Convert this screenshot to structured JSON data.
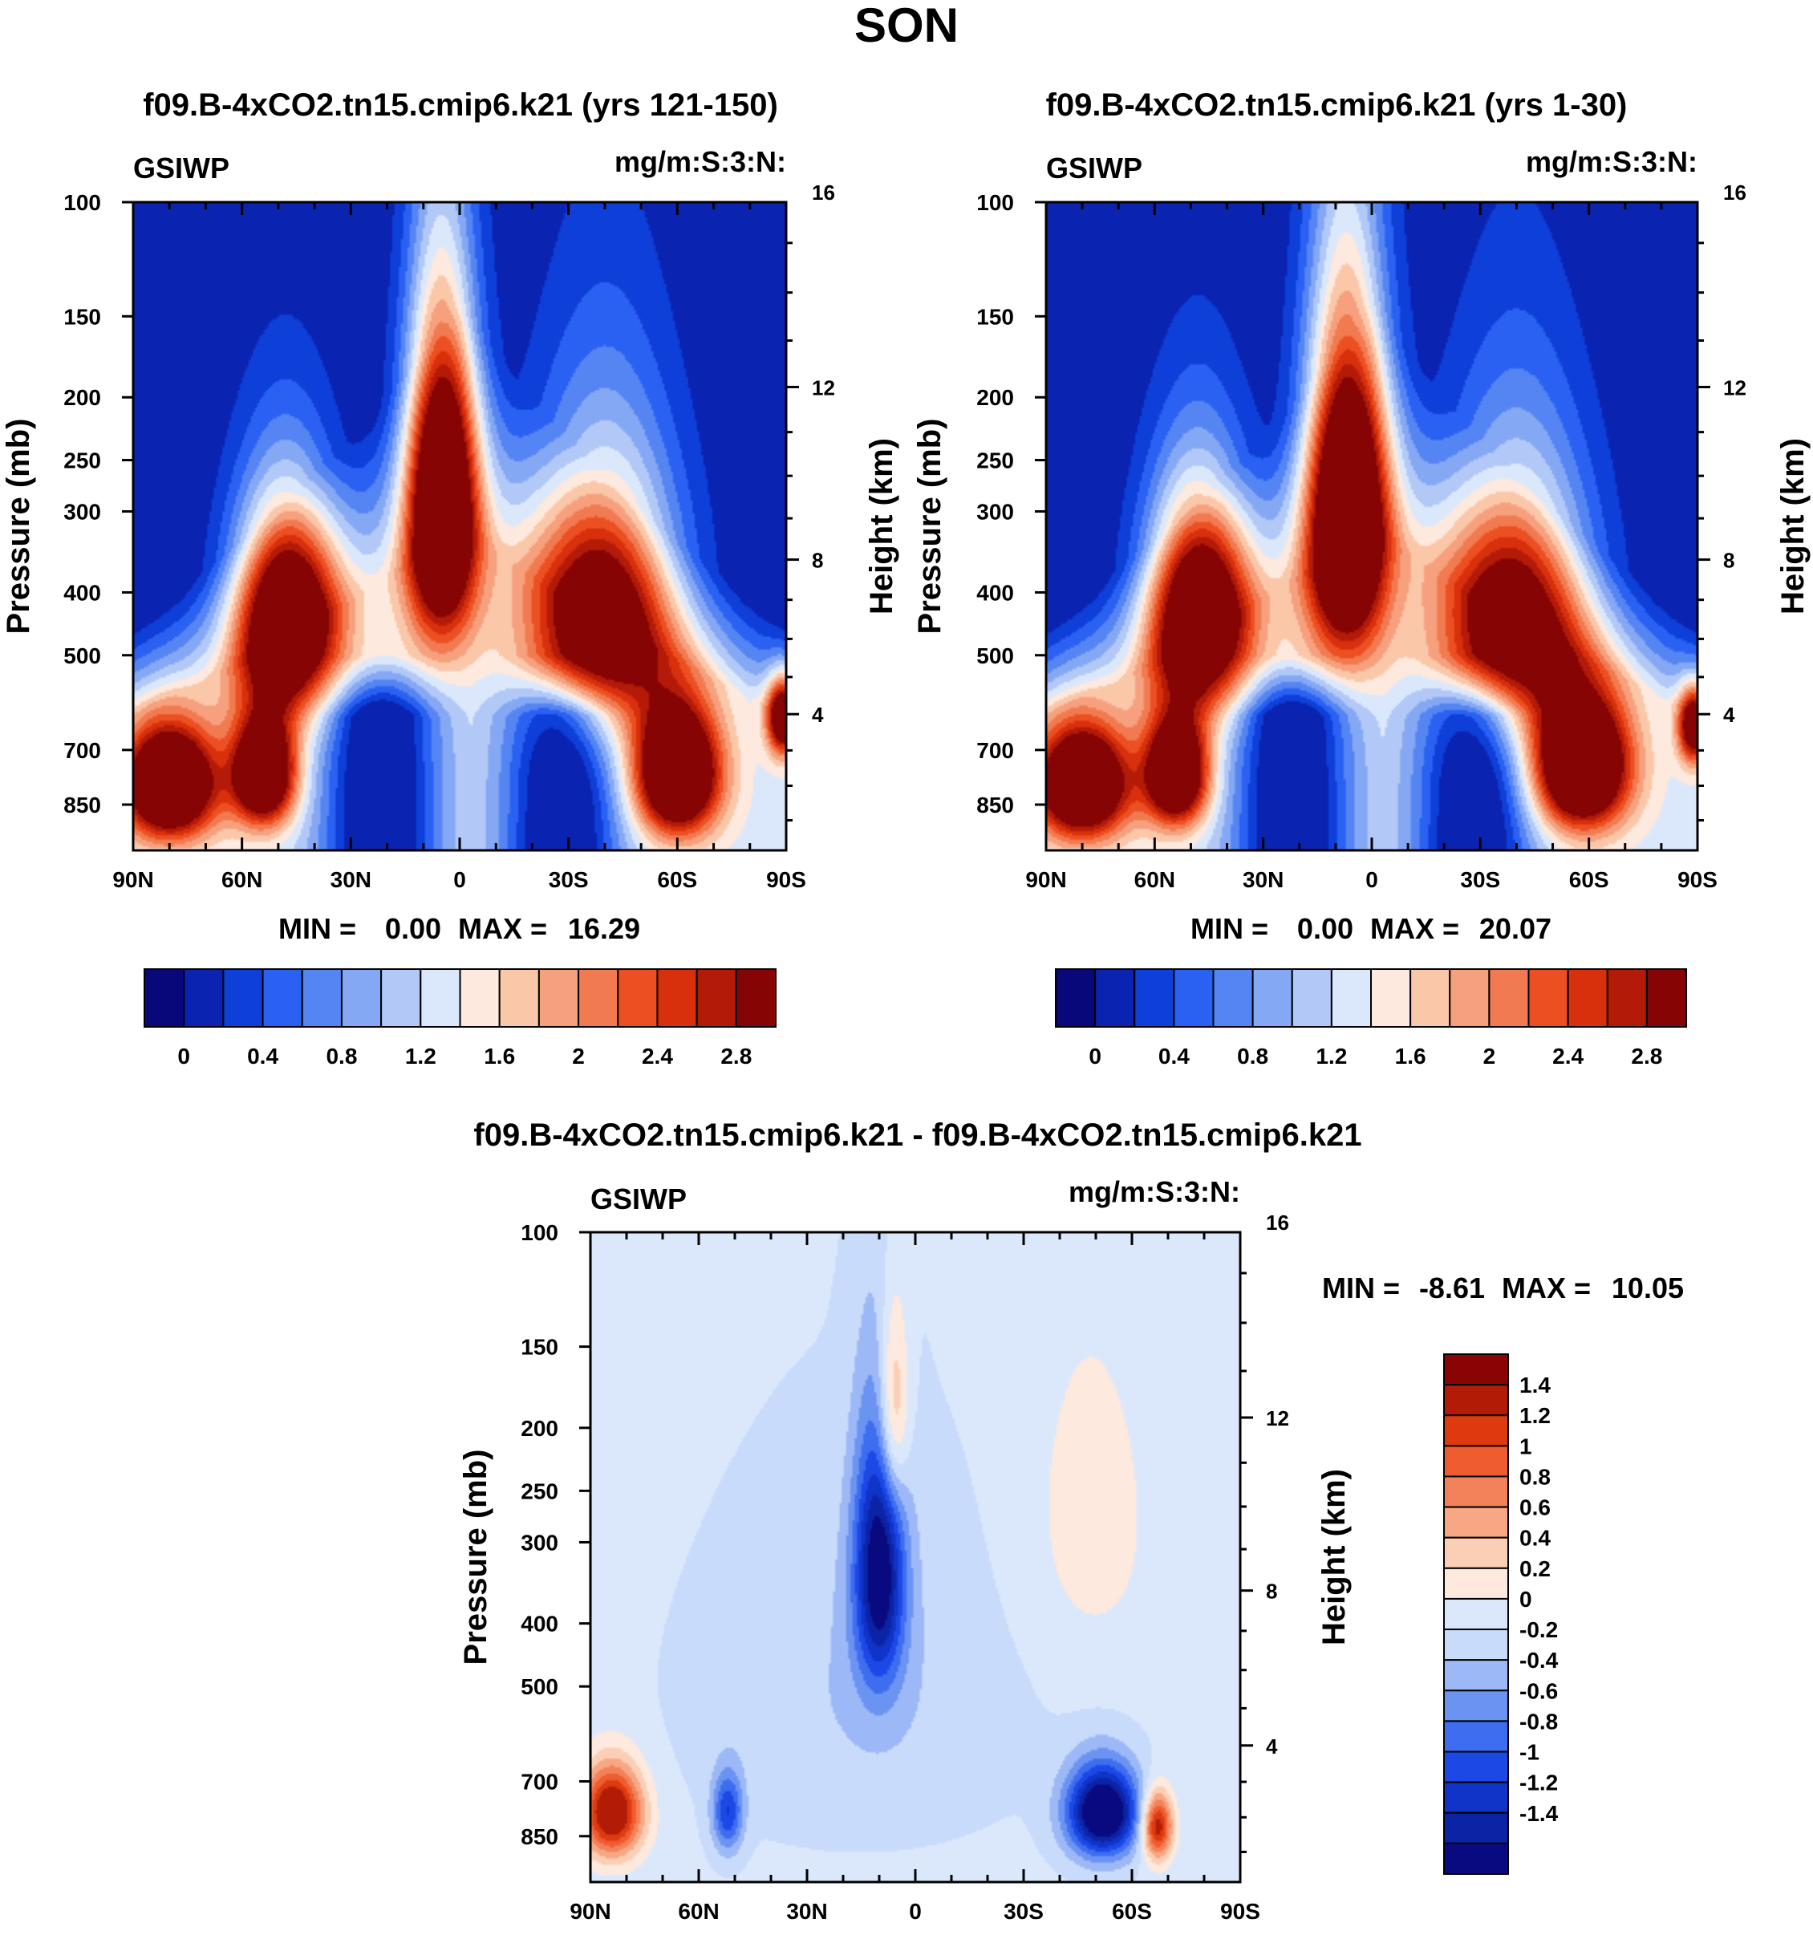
{
  "figure": {
    "season_title": "SON",
    "diff_title": "f09.B-4xCO2.tn15.cmip6.k21 - f09.B-4xCO2.tn15.cmip6.k21"
  },
  "colors": {
    "seq_palette": [
      "#08087a",
      "#0a23b0",
      "#0e3fd8",
      "#2a61f2",
      "#5585f2",
      "#85a8f5",
      "#b2c9f8",
      "#dbe8fc",
      "#fde9dd",
      "#fbc7a9",
      "#f6a07e",
      "#f27a50",
      "#ec4f22",
      "#d82f0d",
      "#b31b08",
      "#870404"
    ],
    "diff_palette": [
      "#0a0a80",
      "#0b24a6",
      "#1033c8",
      "#1c49e6",
      "#3e6df0",
      "#6b93f2",
      "#9cb8f6",
      "#c9dbfa",
      "#dbe8fc",
      "#fde9dd",
      "#fbcfb5",
      "#f7a784",
      "#f3825a",
      "#ee5c2f",
      "#dd3a10",
      "#b21c07",
      "#8a0404"
    ]
  },
  "chart_data": [
    {
      "type": "heatmap",
      "title": "f09.B-4xCO2.tn15.cmip6.k21 (yrs 121-150)",
      "left_label": "GSIWP",
      "right_label": "mg/m:S:3:N:",
      "xlabel": "",
      "ylabel": "Pressure (mb)",
      "y2label": "Height (km)",
      "x_ticks": [
        "90N",
        "60N",
        "30N",
        "0",
        "30S",
        "60S",
        "90S"
      ],
      "x_range": [
        90,
        -90
      ],
      "y_ticks": [
        100,
        150,
        200,
        250,
        300,
        400,
        500,
        700,
        850
      ],
      "y_range": [
        100,
        1000
      ],
      "y2_ticks": [
        16,
        12,
        8,
        4
      ],
      "min_label": "MIN =",
      "min_value": "0.00",
      "max_label": "MAX =",
      "max_value": "16.29",
      "colorbar_labels": [
        "0",
        "0.4",
        "0.8",
        "1.2",
        "1.6",
        "2",
        "2.4",
        "2.8"
      ],
      "colorbar_levels": [
        0,
        0.2,
        0.4,
        0.6,
        0.8,
        1,
        1.2,
        1.4,
        1.6,
        1.8,
        2,
        2.2,
        2.4,
        2.6,
        2.8
      ],
      "features": [
        {
          "lat": 5,
          "p": 280,
          "value": 3.5,
          "sx": 7,
          "sp": 120
        },
        {
          "lat": 48,
          "p": 430,
          "value": 3.1,
          "sx": 10,
          "sp": 120
        },
        {
          "lat": 80,
          "p": 790,
          "value": 3.2,
          "sx": 9,
          "sp": 110
        },
        {
          "lat": 54,
          "p": 760,
          "value": 3.0,
          "sx": 6,
          "sp": 100
        },
        {
          "lat": -40,
          "p": 420,
          "value": 2.5,
          "sx": 14,
          "sp": 150
        },
        {
          "lat": -60,
          "p": 760,
          "value": 3.2,
          "sx": 8,
          "sp": 120
        },
        {
          "lat": -89,
          "p": 620,
          "value": 2.5,
          "sx": 3,
          "sp": 60
        }
      ]
    },
    {
      "type": "heatmap",
      "title": "f09.B-4xCO2.tn15.cmip6.k21 (yrs 1-30)",
      "left_label": "GSIWP",
      "right_label": "mg/m:S:3:N:",
      "xlabel": "",
      "ylabel": "Pressure (mb)",
      "y2label": "Height (km)",
      "x_ticks": [
        "90N",
        "60N",
        "30N",
        "0",
        "30S",
        "60S",
        "90S"
      ],
      "x_range": [
        90,
        -90
      ],
      "y_ticks": [
        100,
        150,
        200,
        250,
        300,
        400,
        500,
        700,
        850
      ],
      "y_range": [
        100,
        1000
      ],
      "y2_ticks": [
        16,
        12,
        8,
        4
      ],
      "min_label": "MIN =",
      "min_value": "0.00",
      "max_label": "MAX =",
      "max_value": "20.07",
      "colorbar_labels": [
        "0",
        "0.4",
        "0.8",
        "1.2",
        "1.6",
        "2",
        "2.4",
        "2.8"
      ],
      "colorbar_levels": [
        0,
        0.2,
        0.4,
        0.6,
        0.8,
        1,
        1.2,
        1.4,
        1.6,
        1.8,
        2,
        2.2,
        2.4,
        2.6,
        2.8
      ],
      "features": [
        {
          "lat": 7,
          "p": 290,
          "value": 3.6,
          "sx": 8,
          "sp": 130
        },
        {
          "lat": 48,
          "p": 420,
          "value": 3.1,
          "sx": 10,
          "sp": 120
        },
        {
          "lat": 80,
          "p": 790,
          "value": 3.1,
          "sx": 9,
          "sp": 110
        },
        {
          "lat": 54,
          "p": 760,
          "value": 3.0,
          "sx": 6,
          "sp": 100
        },
        {
          "lat": -40,
          "p": 430,
          "value": 2.4,
          "sx": 14,
          "sp": 150
        },
        {
          "lat": -58,
          "p": 740,
          "value": 3.3,
          "sx": 9,
          "sp": 120
        },
        {
          "lat": -89,
          "p": 640,
          "value": 2.4,
          "sx": 3,
          "sp": 60
        }
      ]
    },
    {
      "type": "heatmap",
      "title": "f09.B-4xCO2.tn15.cmip6.k21 - f09.B-4xCO2.tn15.cmip6.k21",
      "left_label": "GSIWP",
      "right_label": "mg/m:S:3:N:",
      "xlabel": "",
      "ylabel": "Pressure (mb)",
      "y2label": "Height (km)",
      "x_ticks": [
        "90N",
        "60N",
        "30N",
        "0",
        "30S",
        "60S",
        "90S"
      ],
      "x_range": [
        90,
        -90
      ],
      "y_ticks": [
        100,
        150,
        200,
        250,
        300,
        400,
        500,
        700,
        850
      ],
      "y_range": [
        100,
        1000
      ],
      "y2_ticks": [
        16,
        12,
        8,
        4
      ],
      "min_label": "MIN =",
      "min_value": "-8.61",
      "max_label": "MAX =",
      "max_value": "10.05",
      "colorbar_labels": [
        "1.4",
        "1.2",
        "1",
        "0.8",
        "0.6",
        "0.4",
        "0.2",
        "0",
        "-0.2",
        "-0.4",
        "-0.6",
        "-0.8",
        "-1",
        "-1.2",
        "-1.4"
      ],
      "colorbar_levels": [
        -1.4,
        -1.2,
        -1,
        -0.8,
        -0.6,
        -0.4,
        -0.2,
        0,
        0.2,
        0.4,
        0.6,
        0.8,
        1,
        1.2,
        1.4
      ],
      "features": [
        {
          "lat": 10,
          "p": 330,
          "value": -1.6,
          "sx": 5,
          "sp": 110
        },
        {
          "lat": 6,
          "p": 190,
          "value": 0.9,
          "sx": 3,
          "sp": 50
        },
        {
          "lat": 84,
          "p": 780,
          "value": 1.8,
          "sx": 6,
          "sp": 90
        },
        {
          "lat": 52,
          "p": 780,
          "value": -1.0,
          "sx": 3,
          "sp": 80
        },
        {
          "lat": -52,
          "p": 780,
          "value": -2.0,
          "sx": 7,
          "sp": 90
        },
        {
          "lat": -67,
          "p": 820,
          "value": 1.6,
          "sx": 3,
          "sp": 70
        },
        {
          "lat": -48,
          "p": 280,
          "value": 0.25,
          "sx": 14,
          "sp": 130
        }
      ]
    }
  ]
}
